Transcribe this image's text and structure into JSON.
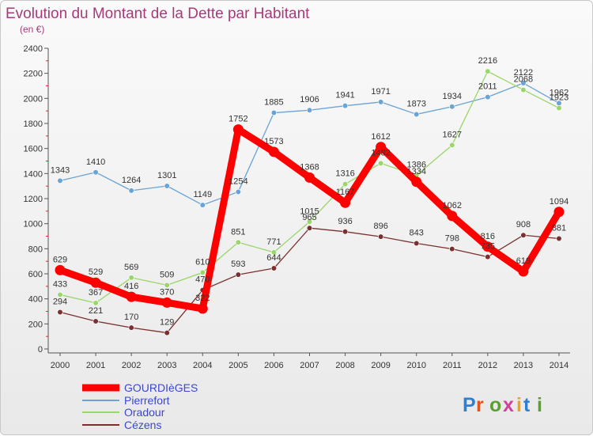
{
  "chart_data": {
    "type": "line",
    "title": "Evolution du Montant de la Dette par Habitant",
    "subtitle": "(en €)",
    "xlabel": "",
    "ylabel": "",
    "categories": [
      "2000",
      "2001",
      "2002",
      "2003",
      "2004",
      "2005",
      "2006",
      "2007",
      "2008",
      "2009",
      "2010",
      "2011",
      "2012",
      "2013",
      "2014"
    ],
    "ylim": [
      0,
      2400
    ],
    "yticks": [
      0,
      200,
      400,
      600,
      800,
      1000,
      1200,
      1400,
      1600,
      1800,
      2000,
      2200,
      2400
    ],
    "grid": false,
    "legend_position": "bottom-left",
    "series": [
      {
        "name": "GOURDIèGES",
        "color": "#ff0000",
        "values": [
          629,
          529,
          416,
          370,
          322,
          1752,
          1573,
          1368,
          1167,
          1612,
          1334,
          1062,
          816,
          619,
          1094
        ]
      },
      {
        "name": "Pierrefort",
        "color": "#6aa3d5",
        "values": [
          1343,
          1410,
          1264,
          1301,
          1149,
          1254,
          1885,
          1906,
          1941,
          1971,
          1873,
          1934,
          2011,
          2122,
          1962
        ]
      },
      {
        "name": "Oradour",
        "color": "#9ad66b",
        "values": [
          433,
          367,
          569,
          509,
          610,
          851,
          771,
          1015,
          1316,
          1482,
          1386,
          1627,
          2216,
          2068,
          1923
        ]
      },
      {
        "name": "Cézens",
        "color": "#7a3030",
        "values": [
          294,
          221,
          170,
          129,
          470,
          593,
          644,
          965,
          936,
          896,
          843,
          798,
          735,
          908,
          881
        ]
      }
    ]
  },
  "branding": {
    "logo_text": "Proxiti"
  }
}
